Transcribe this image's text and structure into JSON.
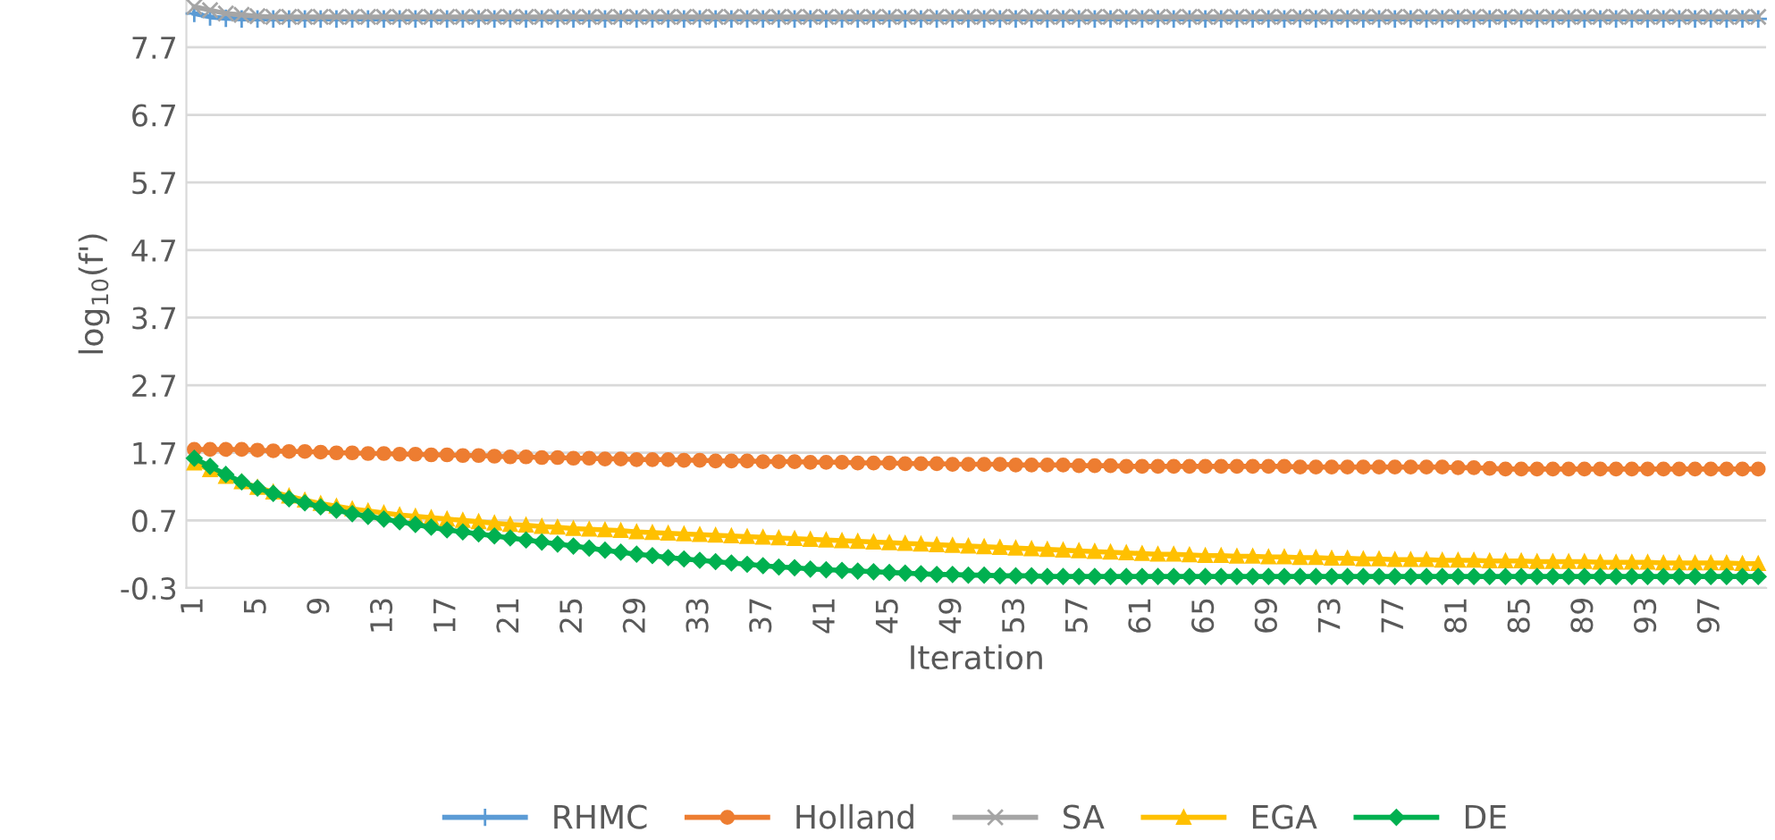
{
  "chart_data": {
    "type": "line",
    "xlabel": "Iteration",
    "ylabel": "log$_{10}$(f')",
    "categories": [
      "1",
      null,
      null,
      null,
      "5",
      null,
      null,
      null,
      "9",
      null,
      null,
      null,
      "13",
      null,
      null,
      null,
      "17",
      null,
      null,
      null,
      "21",
      null,
      null,
      null,
      "25",
      null,
      null,
      null,
      "29",
      null,
      null,
      null,
      "33",
      null,
      null,
      null,
      "37",
      null,
      null,
      null,
      "41",
      null,
      null,
      null,
      "45",
      null,
      null,
      null,
      "49",
      null,
      null,
      null,
      "53",
      null,
      null,
      null,
      "57",
      null,
      null,
      null,
      "61",
      null,
      null,
      null,
      "65",
      null,
      null,
      null,
      "69",
      null,
      null,
      null,
      "73",
      null,
      null,
      null,
      "77",
      null,
      null,
      null,
      "81",
      null,
      null,
      null,
      "85",
      null,
      null,
      null,
      "89",
      null,
      null,
      null,
      "93",
      null,
      null,
      null,
      "97",
      null,
      null,
      null
    ],
    "ylim": [
      -0.3,
      8.4
    ],
    "yticks": [
      -0.3,
      0.7,
      1.7,
      2.7,
      3.7,
      4.7,
      5.7,
      6.7,
      7.7
    ],
    "grid": "y",
    "legend": "bottom",
    "series": [
      {
        "name": "RHMC",
        "color": "#5b9bd5",
        "marker": "cross",
        "values": [
          8.2,
          8.15,
          8.13,
          8.12,
          8.12,
          8.12,
          8.12,
          8.12,
          8.12,
          8.12,
          8.12,
          8.12,
          8.12,
          8.12,
          8.12,
          8.12,
          8.12,
          8.12,
          8.12,
          8.12,
          8.12,
          8.12,
          8.12,
          8.12,
          8.12,
          8.12,
          8.12,
          8.12,
          8.12,
          8.12,
          8.12,
          8.12,
          8.12,
          8.12,
          8.12,
          8.12,
          8.12,
          8.12,
          8.12,
          8.12,
          8.12,
          8.12,
          8.12,
          8.12,
          8.12,
          8.12,
          8.12,
          8.12,
          8.12,
          8.12,
          8.12,
          8.12,
          8.12,
          8.12,
          8.12,
          8.12,
          8.12,
          8.12,
          8.12,
          8.12,
          8.12,
          8.12,
          8.12,
          8.12,
          8.12,
          8.12,
          8.12,
          8.12,
          8.12,
          8.12,
          8.12,
          8.12,
          8.12,
          8.12,
          8.12,
          8.12,
          8.12,
          8.12,
          8.12,
          8.12,
          8.12,
          8.12,
          8.12,
          8.12,
          8.12,
          8.12,
          8.12,
          8.12,
          8.12,
          8.12,
          8.12,
          8.12,
          8.12,
          8.12,
          8.12,
          8.12,
          8.12,
          8.12,
          8.12,
          8.12
        ]
      },
      {
        "name": "Holland",
        "color": "#ed7d31",
        "marker": "circle",
        "values": [
          1.75,
          1.75,
          1.75,
          1.75,
          1.74,
          1.73,
          1.72,
          1.72,
          1.71,
          1.7,
          1.7,
          1.69,
          1.69,
          1.68,
          1.68,
          1.67,
          1.67,
          1.66,
          1.66,
          1.65,
          1.64,
          1.64,
          1.63,
          1.63,
          1.62,
          1.62,
          1.61,
          1.61,
          1.6,
          1.6,
          1.6,
          1.59,
          1.59,
          1.58,
          1.58,
          1.58,
          1.57,
          1.57,
          1.57,
          1.56,
          1.56,
          1.56,
          1.55,
          1.55,
          1.55,
          1.54,
          1.54,
          1.54,
          1.53,
          1.53,
          1.53,
          1.53,
          1.52,
          1.52,
          1.52,
          1.52,
          1.51,
          1.51,
          1.51,
          1.5,
          1.5,
          1.5,
          1.5,
          1.5,
          1.5,
          1.5,
          1.5,
          1.5,
          1.5,
          1.5,
          1.49,
          1.49,
          1.49,
          1.49,
          1.49,
          1.49,
          1.49,
          1.49,
          1.49,
          1.49,
          1.48,
          1.48,
          1.47,
          1.46,
          1.46,
          1.46,
          1.46,
          1.46,
          1.46,
          1.46,
          1.46,
          1.46,
          1.46,
          1.46,
          1.46,
          1.46,
          1.46,
          1.46,
          1.46,
          1.46
        ]
      },
      {
        "name": "SA",
        "color": "#a5a5a5",
        "marker": "x",
        "values": [
          8.3,
          8.25,
          8.2,
          8.18,
          8.16,
          8.15,
          8.15,
          8.15,
          8.15,
          8.15,
          8.15,
          8.15,
          8.15,
          8.15,
          8.15,
          8.15,
          8.15,
          8.15,
          8.15,
          8.15,
          8.15,
          8.15,
          8.15,
          8.15,
          8.15,
          8.15,
          8.15,
          8.15,
          8.15,
          8.15,
          8.15,
          8.15,
          8.15,
          8.15,
          8.15,
          8.15,
          8.15,
          8.15,
          8.15,
          8.15,
          8.15,
          8.15,
          8.15,
          8.15,
          8.15,
          8.15,
          8.15,
          8.15,
          8.15,
          8.15,
          8.15,
          8.15,
          8.15,
          8.15,
          8.15,
          8.15,
          8.15,
          8.15,
          8.15,
          8.15,
          8.15,
          8.15,
          8.15,
          8.15,
          8.15,
          8.15,
          8.15,
          8.15,
          8.15,
          8.15,
          8.15,
          8.15,
          8.15,
          8.15,
          8.15,
          8.15,
          8.15,
          8.15,
          8.15,
          8.15,
          8.15,
          8.15,
          8.15,
          8.15,
          8.15,
          8.15,
          8.15,
          8.15,
          8.15,
          8.15,
          8.15,
          8.15,
          8.15,
          8.15,
          8.15,
          8.15,
          8.15,
          8.15,
          8.15,
          8.15
        ]
      },
      {
        "name": "EGA",
        "color": "#ffc000",
        "marker": "triangle",
        "values": [
          1.55,
          1.45,
          1.35,
          1.27,
          1.19,
          1.12,
          1.06,
          1.0,
          0.95,
          0.91,
          0.87,
          0.84,
          0.81,
          0.78,
          0.76,
          0.74,
          0.72,
          0.7,
          0.68,
          0.66,
          0.64,
          0.63,
          0.61,
          0.6,
          0.58,
          0.57,
          0.56,
          0.55,
          0.53,
          0.52,
          0.51,
          0.5,
          0.49,
          0.48,
          0.47,
          0.46,
          0.45,
          0.44,
          0.43,
          0.42,
          0.41,
          0.4,
          0.39,
          0.38,
          0.37,
          0.36,
          0.35,
          0.34,
          0.33,
          0.32,
          0.31,
          0.3,
          0.29,
          0.28,
          0.27,
          0.26,
          0.25,
          0.24,
          0.23,
          0.22,
          0.21,
          0.2,
          0.2,
          0.19,
          0.18,
          0.18,
          0.17,
          0.17,
          0.16,
          0.16,
          0.15,
          0.15,
          0.14,
          0.14,
          0.13,
          0.13,
          0.12,
          0.12,
          0.12,
          0.11,
          0.11,
          0.11,
          0.1,
          0.1,
          0.1,
          0.09,
          0.09,
          0.09,
          0.09,
          0.08,
          0.08,
          0.08,
          0.08,
          0.07,
          0.07,
          0.07,
          0.07,
          0.07,
          0.06,
          0.06
        ]
      },
      {
        "name": "DE",
        "color": "#00b050",
        "marker": "diamond",
        "values": [
          1.62,
          1.5,
          1.38,
          1.27,
          1.18,
          1.1,
          1.02,
          0.96,
          0.9,
          0.85,
          0.8,
          0.76,
          0.72,
          0.68,
          0.64,
          0.6,
          0.56,
          0.53,
          0.5,
          0.47,
          0.44,
          0.41,
          0.38,
          0.35,
          0.32,
          0.29,
          0.26,
          0.23,
          0.2,
          0.18,
          0.15,
          0.13,
          0.11,
          0.09,
          0.07,
          0.05,
          0.03,
          0.01,
          0.0,
          -0.02,
          -0.03,
          -0.04,
          -0.05,
          -0.06,
          -0.07,
          -0.08,
          -0.09,
          -0.1,
          -0.1,
          -0.11,
          -0.11,
          -0.12,
          -0.12,
          -0.12,
          -0.13,
          -0.13,
          -0.13,
          -0.13,
          -0.13,
          -0.13,
          -0.13,
          -0.13,
          -0.13,
          -0.13,
          -0.13,
          -0.13,
          -0.13,
          -0.13,
          -0.13,
          -0.13,
          -0.13,
          -0.13,
          -0.13,
          -0.13,
          -0.13,
          -0.13,
          -0.13,
          -0.13,
          -0.13,
          -0.13,
          -0.13,
          -0.13,
          -0.13,
          -0.13,
          -0.13,
          -0.13,
          -0.13,
          -0.13,
          -0.13,
          -0.13,
          -0.13,
          -0.13,
          -0.13,
          -0.13,
          -0.13,
          -0.13,
          -0.13,
          -0.13,
          -0.13,
          -0.13
        ]
      }
    ]
  }
}
